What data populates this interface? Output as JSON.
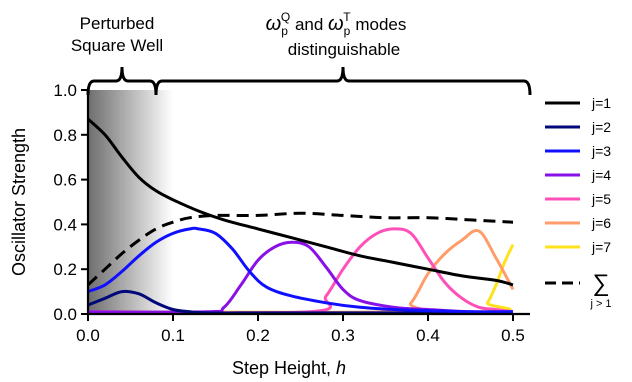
{
  "chart_data": {
    "type": "line",
    "xlabel": "Step Height, ",
    "xlabel_var": "h",
    "ylabel": "Oscillator Strength",
    "xlim": [
      0.0,
      0.52
    ],
    "ylim": [
      0.0,
      1.0
    ],
    "xticks": [
      0.0,
      0.1,
      0.2,
      0.3,
      0.4,
      0.5
    ],
    "xtick_labels": [
      "0.0",
      "0.1",
      "0.2",
      "0.3",
      "0.4",
      "0.5"
    ],
    "yticks": [
      0.0,
      0.2,
      0.4,
      0.6,
      0.8,
      1.0
    ],
    "ytick_labels": [
      "0.0",
      "0.2",
      "0.4",
      "0.6",
      "0.8",
      "1.0"
    ],
    "grid": false,
    "legend_position": "right",
    "shaded_region": {
      "x": [
        0.0,
        0.1
      ],
      "color_from": "#6e6e6e",
      "color_to": "#ffffff"
    },
    "annotations": {
      "region1": {
        "line1": "Perturbed",
        "line2": "Square Well",
        "x_range": [
          0.0,
          0.08
        ]
      },
      "region2": {
        "omega": "ω",
        "sub": "p",
        "sup1": "Q",
        "mid": " and ",
        "sup2": "T",
        "end": " modes",
        "line2": "distinguishable",
        "x_range": [
          0.08,
          0.52
        ]
      }
    },
    "series": [
      {
        "name": "j=1",
        "color": "#000000",
        "dash": "solid",
        "x": [
          0.0,
          0.02,
          0.04,
          0.06,
          0.08,
          0.1,
          0.13,
          0.16,
          0.2,
          0.24,
          0.28,
          0.32,
          0.36,
          0.4,
          0.44,
          0.48,
          0.5
        ],
        "y": [
          0.87,
          0.8,
          0.7,
          0.61,
          0.55,
          0.51,
          0.46,
          0.42,
          0.38,
          0.34,
          0.3,
          0.26,
          0.23,
          0.2,
          0.17,
          0.15,
          0.13
        ]
      },
      {
        "name": "j=2",
        "color": "#00087a",
        "dash": "solid",
        "x": [
          0.0,
          0.02,
          0.04,
          0.06,
          0.08,
          0.1,
          0.12,
          0.14,
          0.18,
          0.22,
          0.26,
          0.3,
          0.34,
          0.38,
          0.42,
          0.46,
          0.5
        ],
        "y": [
          0.04,
          0.07,
          0.1,
          0.09,
          0.05,
          0.02,
          0.01,
          0.005,
          0.005,
          0.005,
          0.005,
          0.005,
          0.005,
          0.005,
          0.005,
          0.005,
          0.005
        ]
      },
      {
        "name": "j=3",
        "color": "#1010ff",
        "dash": "solid",
        "x": [
          0.0,
          0.02,
          0.04,
          0.06,
          0.08,
          0.1,
          0.12,
          0.13,
          0.15,
          0.17,
          0.19,
          0.21,
          0.24,
          0.28,
          0.32,
          0.36,
          0.4,
          0.45,
          0.5
        ],
        "y": [
          0.1,
          0.13,
          0.19,
          0.26,
          0.32,
          0.36,
          0.38,
          0.38,
          0.36,
          0.29,
          0.19,
          0.12,
          0.08,
          0.05,
          0.03,
          0.02,
          0.015,
          0.01,
          0.01
        ]
      },
      {
        "name": "j=4",
        "color": "#8a10e8",
        "dash": "solid",
        "x": [
          0.0,
          0.14,
          0.16,
          0.18,
          0.2,
          0.22,
          0.24,
          0.26,
          0.28,
          0.3,
          0.32,
          0.36,
          0.4,
          0.45,
          0.5
        ],
        "y": [
          0.01,
          0.01,
          0.03,
          0.13,
          0.24,
          0.3,
          0.32,
          0.3,
          0.21,
          0.11,
          0.06,
          0.03,
          0.02,
          0.01,
          0.01
        ]
      },
      {
        "name": "j=5",
        "color": "#ff4fb8",
        "dash": "solid",
        "x": [
          0.0,
          0.26,
          0.28,
          0.3,
          0.32,
          0.34,
          0.36,
          0.38,
          0.4,
          0.42,
          0.44,
          0.46,
          0.48,
          0.5
        ],
        "y": [
          0.01,
          0.01,
          0.08,
          0.2,
          0.3,
          0.36,
          0.38,
          0.36,
          0.25,
          0.14,
          0.07,
          0.03,
          0.02,
          0.01
        ]
      },
      {
        "name": "j=6",
        "color": "#ff9c6a",
        "dash": "solid",
        "x": [
          0.0,
          0.36,
          0.38,
          0.4,
          0.42,
          0.44,
          0.46,
          0.48,
          0.5
        ],
        "y": [
          0.01,
          0.01,
          0.05,
          0.18,
          0.27,
          0.33,
          0.37,
          0.25,
          0.11
        ]
      },
      {
        "name": "j=7",
        "color": "#ffe11e",
        "dash": "solid",
        "x": [
          0.0,
          0.46,
          0.47,
          0.48,
          0.49,
          0.5
        ],
        "y": [
          0.01,
          0.01,
          0.05,
          0.13,
          0.23,
          0.31
        ]
      },
      {
        "name": "∑",
        "name_sub": "j > 1",
        "color": "#000000",
        "dash": "dashed",
        "x": [
          0.0,
          0.02,
          0.04,
          0.06,
          0.08,
          0.1,
          0.12,
          0.15,
          0.2,
          0.25,
          0.3,
          0.35,
          0.4,
          0.45,
          0.5
        ],
        "y": [
          0.13,
          0.2,
          0.27,
          0.33,
          0.38,
          0.41,
          0.43,
          0.44,
          0.44,
          0.45,
          0.44,
          0.43,
          0.43,
          0.42,
          0.41
        ]
      }
    ]
  }
}
